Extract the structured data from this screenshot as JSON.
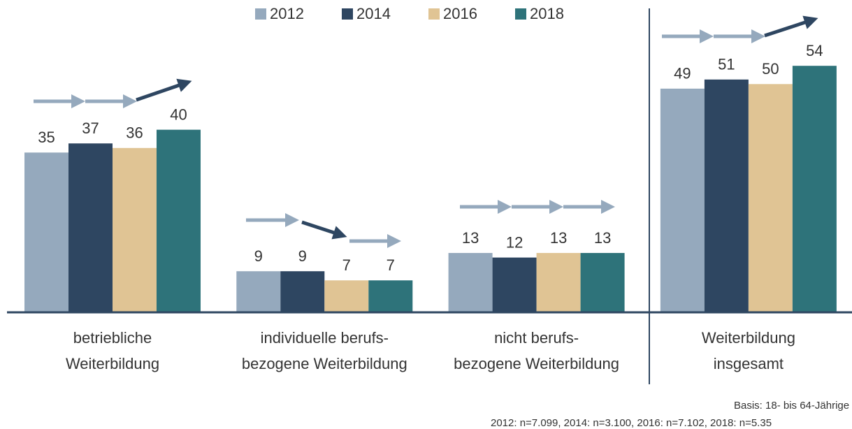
{
  "chart_data": {
    "type": "bar",
    "categories": [
      "betriebliche\nWeiterbildung",
      "individuelle berufs-\nbezogene Weiterbildung",
      "nicht berufs-\nbezogene Weiterbildung",
      "Weiterbildung\ninsgesamt"
    ],
    "series": [
      {
        "name": "2012",
        "color": "#95a9bd",
        "values": [
          35,
          9,
          13,
          49
        ]
      },
      {
        "name": "2014",
        "color": "#2e4661",
        "values": [
          37,
          9,
          12,
          51
        ]
      },
      {
        "name": "2016",
        "color": "#e0c494",
        "values": [
          36,
          7,
          13,
          50
        ]
      },
      {
        "name": "2018",
        "color": "#2e737a",
        "values": [
          40,
          7,
          13,
          54
        ]
      }
    ],
    "ylim": [
      0,
      60
    ],
    "notes": [
      "Basis: 18- bis 64-Jährige",
      "2012: n=7.099, 2014: n=3.100, 2016: n=7.102, 2018: n=5.35"
    ]
  }
}
